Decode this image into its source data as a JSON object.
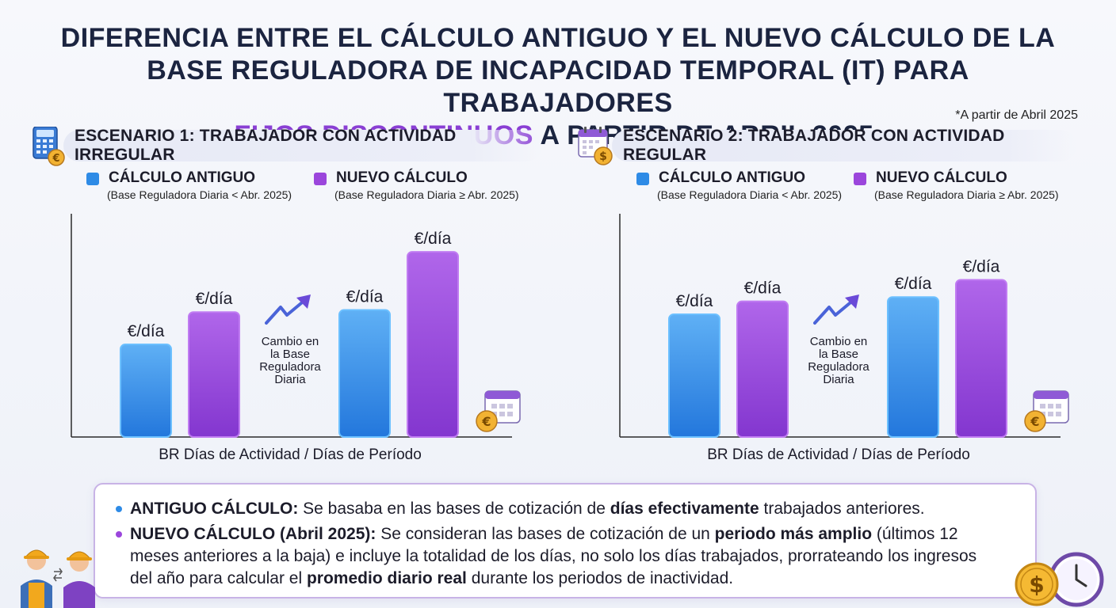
{
  "title": {
    "line1": "DIFERENCIA ENTRE EL CÁLCULO ANTIGUO Y EL NUEVO CÁLCULO DE LA",
    "line2": "BASE REGULADORA DE INCAPACIDAD TEMPORAL (IT) PARA TRABAJADORES",
    "line3_highlight": "FIJOS DISCONTINUOS",
    "line3_rest": " A PARTIR DE ABRIL 2025."
  },
  "note": "*A partir de Abril 2025",
  "colors": {
    "old": "#2e8be6",
    "new": "#9b46dc",
    "title": "#1b2440",
    "highlight": "#8a3fd4"
  },
  "legend": {
    "old_label": "CÁLCULO ANTIGUO",
    "old_sub": "(Base Reguladora Diaria < Abr. 2025)",
    "new_label": "NUEVO CÁLCULO",
    "new_sub": "(Base Reguladora Diaria ≥ Abr. 2025)"
  },
  "scenario1": {
    "header": "ESCENARIO 1: TRABAJADOR CON ACTIVIDAD IRREGULAR",
    "icon": "calculator-euro-icon"
  },
  "scenario2": {
    "header": "ESCENARIO 2: TRABAJADOR CON ACTIVIDAD REGULAR",
    "icon": "calendar-dollar-icon"
  },
  "chart_data": [
    {
      "type": "bar",
      "xlabel": "BR Días de Actividad / Días de Período",
      "annotation": [
        "Cambio en",
        "la Base",
        "Reguladora",
        "Diaria"
      ],
      "ylim": [
        0,
        10
      ],
      "bars": [
        {
          "series": "old",
          "value": 4.3,
          "label": "€/día"
        },
        {
          "series": "new",
          "value": 5.8,
          "label": "€/día"
        },
        {
          "series": "old",
          "value": 5.9,
          "label": "€/día"
        },
        {
          "series": "new",
          "value": 8.6,
          "label": "€/día"
        }
      ]
    },
    {
      "type": "bar",
      "xlabel": "BR Días de Actividad / Días de Período",
      "annotation": [
        "Cambio en",
        "la Base",
        "Reguladora",
        "Diaria"
      ],
      "ylim": [
        0,
        10
      ],
      "bars": [
        {
          "series": "old",
          "value": 5.7,
          "label": "€/día"
        },
        {
          "series": "new",
          "value": 6.3,
          "label": "€/día"
        },
        {
          "series": "old",
          "value": 6.5,
          "label": "€/día"
        },
        {
          "series": "new",
          "value": 7.3,
          "label": "€/día"
        }
      ]
    }
  ],
  "info": {
    "old_bold": "ANTIGUO CÁLCULO:",
    "old_text1": " Se basaba en las bases de cotización de ",
    "old_bold2": "días efectivamente",
    "old_text2": " trabajados anteriores.",
    "new_bold": "NUEVO CÁLCULO (Abril 2025):",
    "new_text1": " Se consideran las bases de cotización de un ",
    "new_bold2": "periodo más amplio",
    "new_text2": " (últimos 12",
    "new_line2": "meses anteriores a la baja) e incluye la totalidad de los días, no solo los días trabajados, prorrateando los ingresos",
    "new_line3a": "del año para calcular el ",
    "new_line3_bold": "promedio diario real",
    "new_line3b": " durante los periodos de inactividad."
  }
}
